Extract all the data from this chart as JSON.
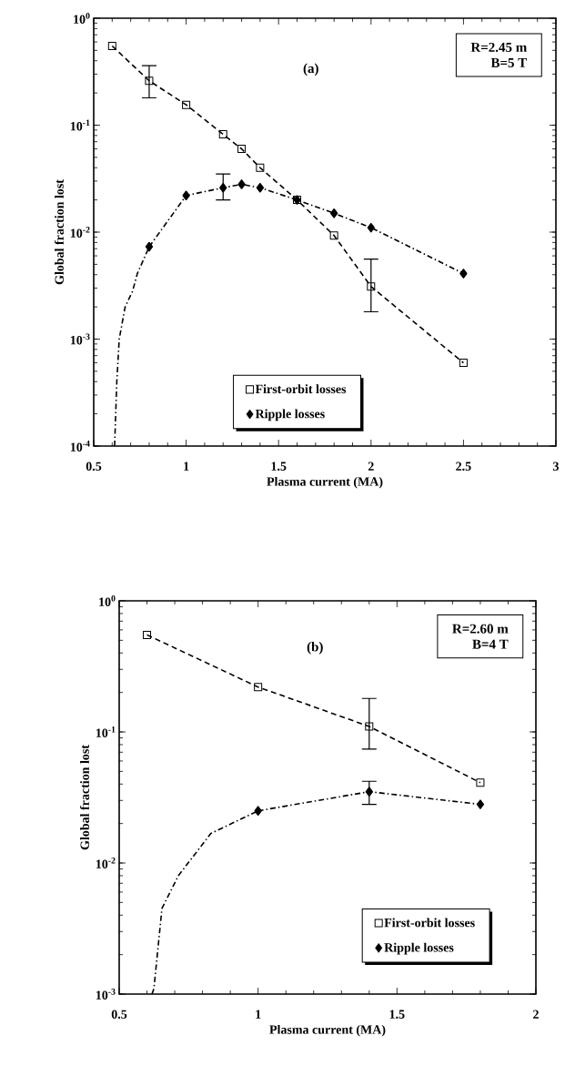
{
  "chart_data": [
    {
      "type": "line",
      "xlabel": "Plasma current (MA)",
      "ylabel": "Global fraction lost",
      "log": "y",
      "legend": "bottom",
      "xlim": [
        0.5,
        3
      ],
      "ylim": [
        0.0001,
        1
      ],
      "xticks": [
        0.5,
        1,
        1.5,
        2,
        2.5,
        3
      ],
      "yticks": [
        {
          "value": 0.0001,
          "label": "10$^{-4}$"
        },
        {
          "value": 0.001,
          "label": "10$^{-3}$"
        },
        {
          "value": 0.01,
          "label": "10$^{-2}$"
        },
        {
          "value": 0.1,
          "label": "10$^{-1}$"
        },
        {
          "value": 1,
          "label": "10$^{0}$"
        }
      ],
      "annotations": [
        "(a)",
        "R=2.45  m",
        "B=5  T"
      ],
      "series": [
        {
          "name": "First-orbit losses",
          "color": "#000000",
          "marker": "square",
          "line_style": "dashed",
          "x": [
            0.6,
            0.8,
            1.0,
            1.2,
            1.3,
            1.4,
            1.6,
            1.8,
            2.0,
            2.5
          ],
          "values": [
            0.55,
            0.26,
            0.155,
            0.082,
            0.06,
            0.04,
            0.02,
            0.0093,
            0.0031,
            0.0006
          ],
          "errors": [
            null,
            [
              0.18,
              0.36
            ],
            null,
            null,
            null,
            null,
            null,
            null,
            [
              0.0018,
              0.0056
            ],
            null
          ]
        },
        {
          "name": "Ripple  losses",
          "color": "#000000",
          "marker": "diamond",
          "line_style": "dashdot",
          "x": [
            0.8,
            1.0,
            1.2,
            1.3,
            1.4,
            1.6,
            1.8,
            2.0,
            2.5
          ],
          "values": [
            0.0073,
            0.022,
            0.026,
            0.028,
            0.026,
            0.02,
            0.015,
            0.011,
            0.0041
          ],
          "errors": [
            null,
            null,
            [
              0.02,
              0.035
            ],
            null,
            null,
            null,
            null,
            null,
            null
          ]
        },
        {
          "color": "#000000",
          "marker": "none",
          "line_style": "dashdot",
          "x": [
            0.613,
            0.625,
            0.638,
            0.67,
            0.71,
            0.736,
            0.8
          ],
          "values": [
            0.0001,
            0.0004,
            0.001,
            0.002,
            0.0028,
            0.0041,
            0.0073
          ]
        }
      ]
    },
    {
      "type": "line",
      "xlabel": "Plasma current (MA)",
      "ylabel": "Global fraction lost",
      "log": "y",
      "legend": "bottom right",
      "xlim": [
        0.5,
        2
      ],
      "ylim": [
        0.001,
        1
      ],
      "xticks": [
        0.5,
        1,
        1.5,
        2
      ],
      "yticks": [
        {
          "value": 0.001,
          "label": "10$^{-3}$"
        },
        {
          "value": 0.01,
          "label": "10$^{-2}$"
        },
        {
          "value": 0.1,
          "label": "10$^{-1}$"
        },
        {
          "value": 1,
          "label": "10$^{0}$"
        }
      ],
      "annotations": [
        "(b)",
        "R=2.60  m",
        "B=4  T"
      ],
      "series": [
        {
          "name": "First-orbit losses",
          "color": "#000000",
          "marker": "square",
          "line_style": "dashed",
          "x": [
            0.6,
            1.0,
            1.4,
            1.8
          ],
          "values": [
            0.55,
            0.22,
            0.11,
            0.041
          ],
          "errors": [
            null,
            null,
            [
              0.074,
              0.18
            ],
            null
          ]
        },
        {
          "name": "Ripple  losses",
          "color": "#000000",
          "marker": "diamond",
          "line_style": "dashdot",
          "x": [
            1.0,
            1.4,
            1.8
          ],
          "values": [
            0.025,
            0.035,
            0.028
          ],
          "errors": [
            null,
            [
              0.028,
              0.042
            ],
            null
          ]
        },
        {
          "color": "#000000",
          "marker": "none",
          "line_style": "dashdot",
          "x": [
            0.618,
            0.625,
            0.654,
            0.713,
            0.83,
            1.0
          ],
          "values": [
            0.001,
            0.0011,
            0.0045,
            0.008,
            0.0168,
            0.025
          ]
        }
      ]
    }
  ]
}
